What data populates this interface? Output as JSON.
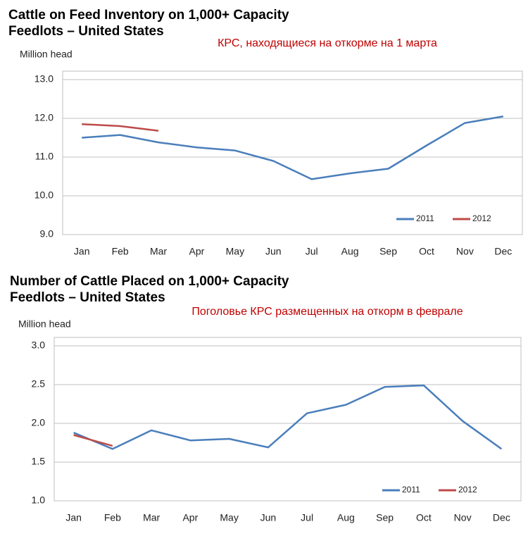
{
  "chart_data": [
    {
      "type": "line",
      "title": "Cattle on Feed Inventory on 1,000+ Capacity Feedlots – United States",
      "annotation": "КРС, находящиеся на откорме на 1 марта",
      "ylabel": "Million head",
      "categories": [
        "Jan",
        "Feb",
        "Mar",
        "Apr",
        "May",
        "Jun",
        "Jul",
        "Aug",
        "Sep",
        "Oct",
        "Nov",
        "Dec"
      ],
      "series": [
        {
          "name": "2011",
          "color": "#4a7ebb",
          "values": [
            11.5,
            11.57,
            11.38,
            11.25,
            11.17,
            10.9,
            10.43,
            10.58,
            10.7,
            11.3,
            11.88,
            12.05
          ]
        },
        {
          "name": "2012",
          "color": "#be4b48",
          "values": [
            11.85,
            11.8,
            11.68,
            null,
            null,
            null,
            null,
            null,
            null,
            null,
            null,
            null
          ]
        }
      ],
      "ylim": [
        9,
        13
      ],
      "yticks": [
        {
          "value": 9,
          "label": "9.0"
        },
        {
          "value": 10,
          "label": "10.0"
        },
        {
          "value": 11,
          "label": "11.0"
        },
        {
          "value": 12,
          "label": "12.0"
        },
        {
          "value": 13,
          "label": "13.0"
        }
      ],
      "grid": true,
      "legend": "lower right"
    },
    {
      "type": "line",
      "title": "Number of Cattle Placed on 1,000+ Capacity Feedlots – United States",
      "annotation": "Поголовье КРС размещенных на откорм в феврале",
      "ylabel": "Million head",
      "categories": [
        "Jan",
        "Feb",
        "Mar",
        "Apr",
        "May",
        "Jun",
        "Jul",
        "Aug",
        "Sep",
        "Oct",
        "Nov",
        "Dec"
      ],
      "series": [
        {
          "name": "2011",
          "color": "#4a7ebb",
          "values": [
            1.88,
            1.67,
            1.91,
            1.78,
            1.8,
            1.69,
            2.13,
            2.24,
            2.47,
            2.49,
            2.03,
            1.67
          ]
        },
        {
          "name": "2012",
          "color": "#be4b48",
          "values": [
            1.85,
            1.71,
            null,
            null,
            null,
            null,
            null,
            null,
            null,
            null,
            null,
            null
          ]
        }
      ],
      "ylim": [
        1,
        3
      ],
      "yticks": [
        {
          "value": 1,
          "label": "1.0"
        },
        {
          "value": 1.5,
          "label": "1.5"
        },
        {
          "value": 2,
          "label": "2.0"
        },
        {
          "value": 2.5,
          "label": "2.5"
        },
        {
          "value": 3,
          "label": "3.0"
        }
      ],
      "grid": true,
      "legend": "lower right"
    }
  ]
}
